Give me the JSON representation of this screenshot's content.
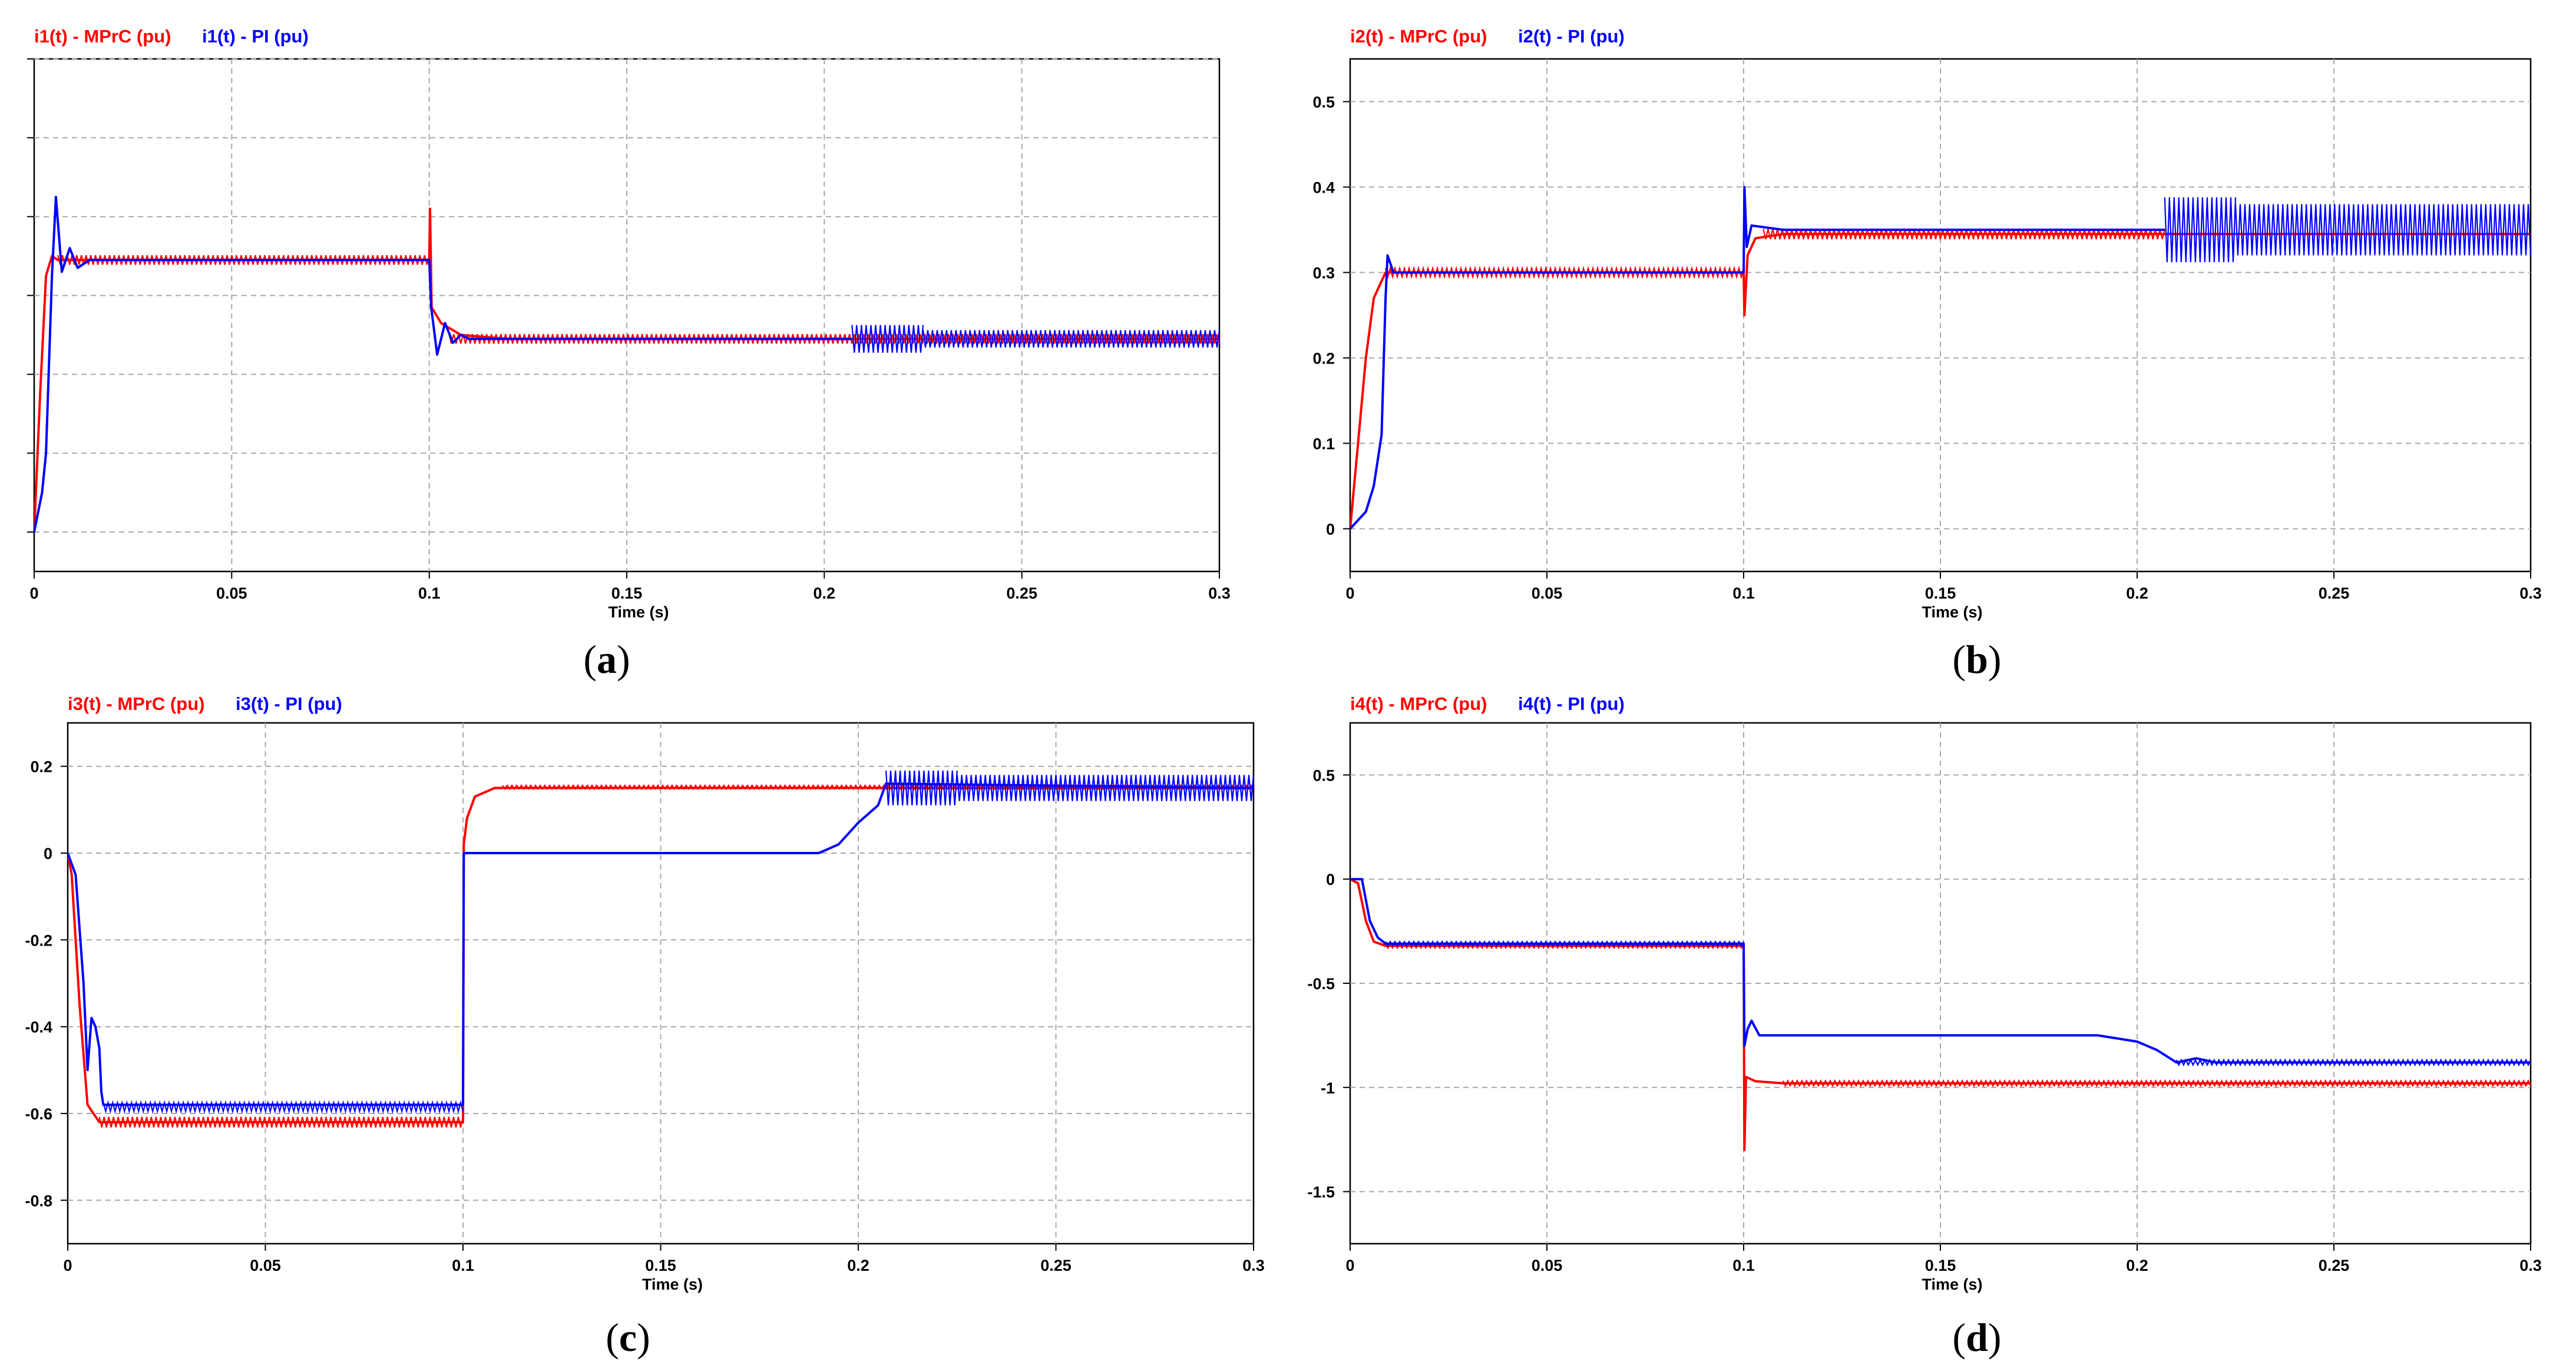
{
  "colors": {
    "mprc": "#ff0000",
    "pi": "#0000ff",
    "grid": "#a8a8a8",
    "axis": "#000000"
  },
  "chart_data": [
    {
      "id": "a",
      "type": "line",
      "caption": "a",
      "legend": {
        "mprc_label": "i1(t) - MPrC (pu)",
        "pi_label": "i1(t) - PI (pu)"
      },
      "xlabel": "Time (s)",
      "ylabel": "",
      "xlim": [
        0,
        0.3
      ],
      "ylim": [
        -0.1,
        1.2
      ],
      "x_ticks": [
        0,
        0.05,
        0.1,
        0.15,
        0.2,
        0.25,
        0.3
      ],
      "x_tick_labels": [
        "0",
        "0.05",
        "0.1",
        "0.15",
        "0.2",
        "0.25",
        "0.3"
      ],
      "y_grid": [
        0,
        0.2,
        0.4,
        0.6,
        0.8,
        1.0,
        1.2
      ],
      "y_tick_labels": [],
      "series": [
        {
          "name": "MPrC",
          "color": "#ff0000",
          "points": [
            [
              0,
              0
            ],
            [
              0.0015,
              0.35
            ],
            [
              0.003,
              0.65
            ],
            [
              0.0045,
              0.7
            ],
            [
              0.006,
              0.69
            ],
            [
              0.1,
              0.69
            ],
            [
              0.1002,
              0.82
            ],
            [
              0.1006,
              0.57
            ],
            [
              0.103,
              0.53
            ],
            [
              0.108,
              0.5
            ],
            [
              0.12,
              0.49
            ],
            [
              0.3,
              0.49
            ]
          ],
          "bands": [
            {
              "x0": 0.006,
              "x1": 0.1,
              "center": 0.69,
              "amp": 0.012
            },
            {
              "x0": 0.105,
              "x1": 0.3,
              "center": 0.49,
              "amp": 0.012
            }
          ]
        },
        {
          "name": "PI",
          "color": "#0000ff",
          "points": [
            [
              0,
              0
            ],
            [
              0.002,
              0.1
            ],
            [
              0.003,
              0.2
            ],
            [
              0.0045,
              0.65
            ],
            [
              0.0055,
              0.85
            ],
            [
              0.007,
              0.66
            ],
            [
              0.009,
              0.72
            ],
            [
              0.011,
              0.67
            ],
            [
              0.014,
              0.69
            ],
            [
              0.1,
              0.69
            ],
            [
              0.1005,
              0.57
            ],
            [
              0.102,
              0.45
            ],
            [
              0.104,
              0.53
            ],
            [
              0.106,
              0.48
            ],
            [
              0.108,
              0.5
            ],
            [
              0.11,
              0.49
            ],
            [
              0.207,
              0.49
            ]
          ],
          "bands": [
            {
              "x0": 0.207,
              "x1": 0.225,
              "center": 0.49,
              "amp": 0.035
            },
            {
              "x0": 0.225,
              "x1": 0.3,
              "center": 0.49,
              "amp": 0.022
            }
          ]
        }
      ]
    },
    {
      "id": "b",
      "type": "line",
      "caption": "b",
      "legend": {
        "mprc_label": "i2(t) - MPrC (pu)",
        "pi_label": "i2(t) - PI (pu)"
      },
      "xlabel": "Time (s)",
      "ylabel": "",
      "xlim": [
        0,
        0.3
      ],
      "ylim": [
        -0.05,
        0.55
      ],
      "x_ticks": [
        0,
        0.05,
        0.1,
        0.15,
        0.2,
        0.25,
        0.3
      ],
      "x_tick_labels": [
        "0",
        "0.05",
        "0.1",
        "0.15",
        "0.2",
        "0.25",
        "0.3"
      ],
      "y_grid": [
        0,
        0.1,
        0.2,
        0.3,
        0.4,
        0.5
      ],
      "y_tick_labels": [
        "0",
        "0.1",
        "0.2",
        "0.3",
        "0.4",
        "0.5"
      ],
      "series": [
        {
          "name": "MPrC",
          "color": "#ff0000",
          "points": [
            [
              0,
              0
            ],
            [
              0.002,
              0.1
            ],
            [
              0.004,
              0.2
            ],
            [
              0.006,
              0.27
            ],
            [
              0.009,
              0.3
            ],
            [
              0.1,
              0.3
            ],
            [
              0.1002,
              0.25
            ],
            [
              0.101,
              0.32
            ],
            [
              0.103,
              0.34
            ],
            [
              0.11,
              0.345
            ],
            [
              0.207,
              0.345
            ],
            [
              0.3,
              0.345
            ]
          ],
          "bands": [
            {
              "x0": 0.009,
              "x1": 0.1,
              "center": 0.3,
              "amp": 0.005
            },
            {
              "x0": 0.105,
              "x1": 0.207,
              "center": 0.345,
              "amp": 0.006
            }
          ]
        },
        {
          "name": "PI",
          "color": "#0000ff",
          "points": [
            [
              0,
              0
            ],
            [
              0.004,
              0.02
            ],
            [
              0.006,
              0.05
            ],
            [
              0.008,
              0.11
            ],
            [
              0.009,
              0.27
            ],
            [
              0.0095,
              0.32
            ],
            [
              0.011,
              0.3
            ],
            [
              0.1,
              0.3
            ],
            [
              0.1002,
              0.4
            ],
            [
              0.1008,
              0.33
            ],
            [
              0.102,
              0.355
            ],
            [
              0.11,
              0.35
            ],
            [
              0.207,
              0.35
            ]
          ],
          "bands": [
            {
              "x0": 0.207,
              "x1": 0.225,
              "center": 0.35,
              "amp": 0.038
            },
            {
              "x0": 0.225,
              "x1": 0.3,
              "center": 0.35,
              "amp": 0.03
            }
          ]
        }
      ]
    },
    {
      "id": "c",
      "type": "line",
      "caption": "c",
      "legend": {
        "mprc_label": "i3(t) - MPrC (pu)",
        "pi_label": "i3(t) - PI (pu)"
      },
      "xlabel": "Time (s)",
      "ylabel": "",
      "xlim": [
        0,
        0.3
      ],
      "ylim": [
        -0.9,
        0.3
      ],
      "x_ticks": [
        0,
        0.05,
        0.1,
        0.15,
        0.2,
        0.25,
        0.3
      ],
      "x_tick_labels": [
        "0",
        "0.05",
        "0.1",
        "0.15",
        "0.2",
        "0.25",
        "0.3"
      ],
      "y_grid": [
        -0.8,
        -0.6,
        -0.4,
        -0.2,
        0,
        0.2
      ],
      "y_tick_labels": [
        "-0.8",
        "-0.6",
        "-0.4",
        "-0.2",
        "0",
        "0.2"
      ],
      "series": [
        {
          "name": "MPrC",
          "color": "#ff0000",
          "points": [
            [
              0,
              0
            ],
            [
              0.001,
              -0.05
            ],
            [
              0.003,
              -0.35
            ],
            [
              0.005,
              -0.58
            ],
            [
              0.008,
              -0.62
            ],
            [
              0.1,
              -0.62
            ],
            [
              0.1002,
              0.02
            ],
            [
              0.101,
              0.08
            ],
            [
              0.103,
              0.13
            ],
            [
              0.108,
              0.15
            ],
            [
              0.3,
              0.15
            ]
          ],
          "bands": [
            {
              "x0": 0.008,
              "x1": 0.1,
              "center": -0.62,
              "amp": 0.012
            },
            {
              "x0": 0.11,
              "x1": 0.3,
              "center": 0.152,
              "amp": 0.004
            }
          ]
        },
        {
          "name": "PI",
          "color": "#0000ff",
          "points": [
            [
              0,
              0
            ],
            [
              0.002,
              -0.05
            ],
            [
              0.004,
              -0.3
            ],
            [
              0.005,
              -0.5
            ],
            [
              0.006,
              -0.38
            ],
            [
              0.007,
              -0.4
            ],
            [
              0.008,
              -0.45
            ],
            [
              0.0085,
              -0.55
            ],
            [
              0.009,
              -0.58
            ],
            [
              0.1,
              -0.58
            ],
            [
              0.1002,
              0
            ],
            [
              0.19,
              0
            ],
            [
              0.195,
              0.02
            ],
            [
              0.2,
              0.07
            ],
            [
              0.205,
              0.11
            ],
            [
              0.207,
              0.16
            ],
            [
              0.3,
              0.15
            ]
          ],
          "bands": [
            {
              "x0": 0.009,
              "x1": 0.1,
              "center": -0.585,
              "amp": 0.01
            },
            {
              "x0": 0.207,
              "x1": 0.225,
              "center": 0.15,
              "amp": 0.04
            },
            {
              "x0": 0.225,
              "x1": 0.3,
              "center": 0.15,
              "amp": 0.03
            }
          ]
        }
      ]
    },
    {
      "id": "d",
      "type": "line",
      "caption": "d",
      "legend": {
        "mprc_label": "i4(t) - MPrC (pu)",
        "pi_label": "i4(t) - PI (pu)"
      },
      "xlabel": "Time (s)",
      "ylabel": "",
      "xlim": [
        0,
        0.3
      ],
      "ylim": [
        -1.75,
        0.75
      ],
      "x_ticks": [
        0,
        0.05,
        0.1,
        0.15,
        0.2,
        0.25,
        0.3
      ],
      "x_tick_labels": [
        "0",
        "0.05",
        "0.1",
        "0.15",
        "0.2",
        "0.25",
        "0.3"
      ],
      "y_grid": [
        -1.5,
        -1,
        -0.5,
        0,
        0.5
      ],
      "y_tick_labels": [
        "-1.5",
        "-1",
        "-0.5",
        "0",
        "0.5"
      ],
      "series": [
        {
          "name": "MPrC",
          "color": "#ff0000",
          "points": [
            [
              0,
              0
            ],
            [
              0.002,
              -0.02
            ],
            [
              0.004,
              -0.2
            ],
            [
              0.006,
              -0.3
            ],
            [
              0.009,
              -0.32
            ],
            [
              0.1,
              -0.32
            ],
            [
              0.1002,
              -1.3
            ],
            [
              0.1006,
              -0.95
            ],
            [
              0.103,
              -0.97
            ],
            [
              0.11,
              -0.98
            ],
            [
              0.3,
              -0.98
            ]
          ],
          "bands": [
            {
              "x0": 0.009,
              "x1": 0.1,
              "center": -0.32,
              "amp": 0.01
            },
            {
              "x0": 0.11,
              "x1": 0.3,
              "center": -0.98,
              "amp": 0.012
            }
          ]
        },
        {
          "name": "PI",
          "color": "#0000ff",
          "points": [
            [
              0,
              0
            ],
            [
              0.003,
              0
            ],
            [
              0.005,
              -0.2
            ],
            [
              0.007,
              -0.28
            ],
            [
              0.009,
              -0.31
            ],
            [
              0.1,
              -0.31
            ],
            [
              0.1002,
              -0.8
            ],
            [
              0.101,
              -0.72
            ],
            [
              0.102,
              -0.68
            ],
            [
              0.104,
              -0.75
            ],
            [
              0.11,
              -0.75
            ],
            [
              0.19,
              -0.75
            ],
            [
              0.2,
              -0.78
            ],
            [
              0.205,
              -0.82
            ],
            [
              0.21,
              -0.88
            ],
            [
              0.215,
              -0.86
            ],
            [
              0.22,
              -0.88
            ],
            [
              0.3,
              -0.88
            ]
          ],
          "bands": [
            {
              "x0": 0.009,
              "x1": 0.1,
              "center": -0.31,
              "amp": 0.01
            },
            {
              "x0": 0.21,
              "x1": 0.3,
              "center": -0.88,
              "amp": 0.012
            }
          ]
        }
      ]
    }
  ]
}
